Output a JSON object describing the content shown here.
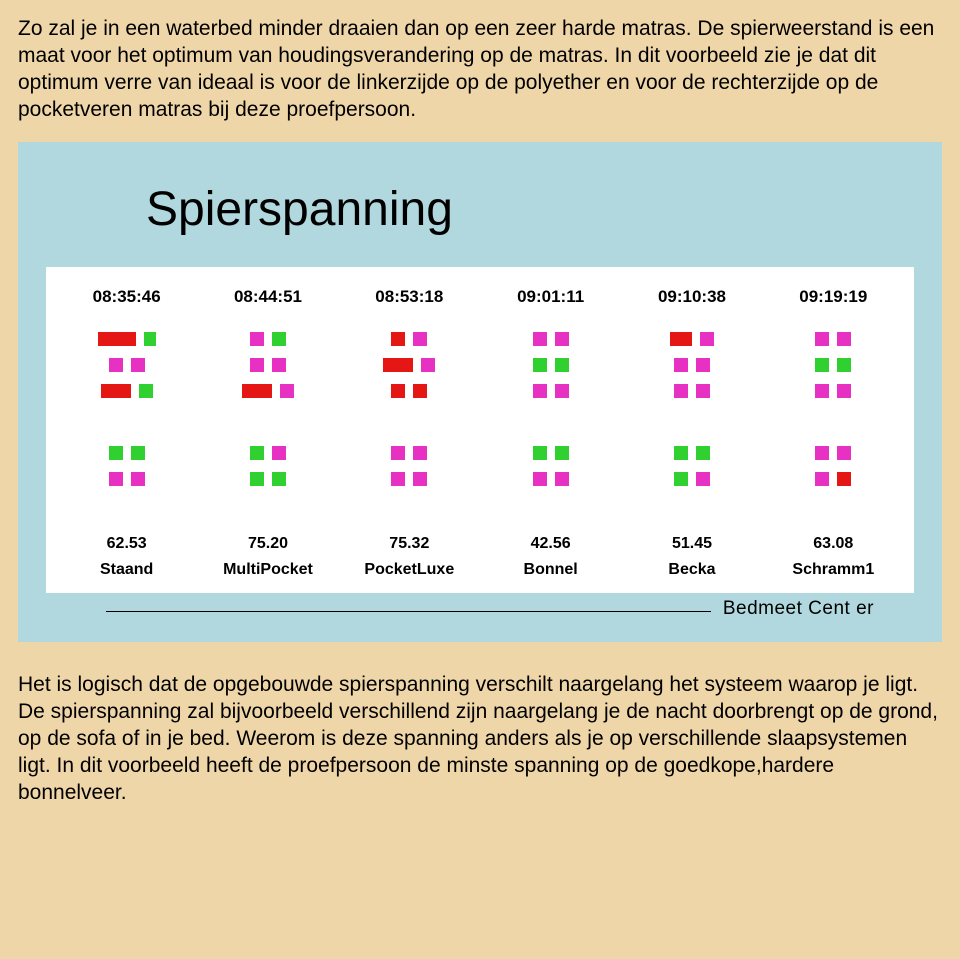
{
  "para1": "Zo zal je in een waterbed minder draaien dan op een zeer harde matras.\nDe spierweerstand is een maat voor het optimum van houdingsverandering op de matras.\nIn dit voorbeeld zie je dat dit optimum verre van ideaal is voor de linkerzijde op de polyether en voor de rechterzijde op de pocketveren matras bij deze proefpersoon.",
  "para2": "Het is logisch dat de opgebouwde spierspanning verschilt naargelang het systeem waarop je ligt. De spierspanning zal bijvoorbeeld verschillend zijn naargelang je de nacht doorbrengt op de grond, op de sofa of in je bed. Weerom is deze spanning anders als je op verschillende slaapsystemen ligt.\nIn dit voorbeeld heeft de proefpersoon de minste spanning op de goedkope,hardere bonnelveer.",
  "chart": {
    "title": "Spierspanning",
    "footer": "Bedmeet  Cent er",
    "bg_outer": "#b0d8de",
    "bg_inner": "#ffffff",
    "text_color": "#000000",
    "colors": {
      "red": "#e41714",
      "magenta": "#e631c2",
      "green": "#2fd02f"
    },
    "times": [
      "08:35:46",
      "08:44:51",
      "08:53:18",
      "09:01:11",
      "09:10:38",
      "09:19:19"
    ],
    "values": [
      "62.53",
      "75.20",
      "75.32",
      "42.56",
      "51.45",
      "63.08"
    ],
    "labels": [
      "Staand",
      "MultiPocket",
      "PocketLuxe",
      "Bonnel",
      "Becka",
      "Schramm1"
    ],
    "rows": [
      [
        {
          "c": "red",
          "w": 38
        },
        {
          "c": "green",
          "w": 12
        },
        {
          "c": "magenta",
          "w": 14
        },
        {
          "c": "green",
          "w": 14
        },
        {
          "c": "red",
          "w": 14
        },
        {
          "c": "magenta",
          "w": 14
        },
        {
          "c": "magenta",
          "w": 14
        },
        {
          "c": "magenta",
          "w": 14
        },
        {
          "c": "red",
          "w": 22
        },
        {
          "c": "magenta",
          "w": 14
        },
        {
          "c": "magenta",
          "w": 14
        },
        {
          "c": "magenta",
          "w": 14
        }
      ],
      [
        {
          "c": "magenta",
          "w": 14
        },
        {
          "c": "magenta",
          "w": 14
        },
        {
          "c": "magenta",
          "w": 14
        },
        {
          "c": "magenta",
          "w": 14
        },
        {
          "c": "red",
          "w": 30
        },
        {
          "c": "magenta",
          "w": 14
        },
        {
          "c": "green",
          "w": 14
        },
        {
          "c": "green",
          "w": 14
        },
        {
          "c": "magenta",
          "w": 14
        },
        {
          "c": "magenta",
          "w": 14
        },
        {
          "c": "green",
          "w": 14
        },
        {
          "c": "green",
          "w": 14
        }
      ],
      [
        {
          "c": "red",
          "w": 30
        },
        {
          "c": "green",
          "w": 14
        },
        {
          "c": "red",
          "w": 30
        },
        {
          "c": "magenta",
          "w": 14
        },
        {
          "c": "red",
          "w": 14
        },
        {
          "c": "red",
          "w": 14
        },
        {
          "c": "magenta",
          "w": 14
        },
        {
          "c": "magenta",
          "w": 14
        },
        {
          "c": "magenta",
          "w": 14
        },
        {
          "c": "magenta",
          "w": 14
        },
        {
          "c": "magenta",
          "w": 14
        },
        {
          "c": "magenta",
          "w": 14
        }
      ],
      [
        {
          "c": "green",
          "w": 14
        },
        {
          "c": "green",
          "w": 14
        },
        {
          "c": "green",
          "w": 14
        },
        {
          "c": "magenta",
          "w": 14
        },
        {
          "c": "magenta",
          "w": 14
        },
        {
          "c": "magenta",
          "w": 14
        },
        {
          "c": "green",
          "w": 14
        },
        {
          "c": "green",
          "w": 14
        },
        {
          "c": "green",
          "w": 14
        },
        {
          "c": "green",
          "w": 14
        },
        {
          "c": "magenta",
          "w": 14
        },
        {
          "c": "magenta",
          "w": 14
        }
      ],
      [
        {
          "c": "magenta",
          "w": 14
        },
        {
          "c": "magenta",
          "w": 14
        },
        {
          "c": "green",
          "w": 14
        },
        {
          "c": "green",
          "w": 14
        },
        {
          "c": "magenta",
          "w": 14
        },
        {
          "c": "magenta",
          "w": 14
        },
        {
          "c": "magenta",
          "w": 14
        },
        {
          "c": "magenta",
          "w": 14
        },
        {
          "c": "green",
          "w": 14
        },
        {
          "c": "magenta",
          "w": 14
        },
        {
          "c": "magenta",
          "w": 14
        },
        {
          "c": "red",
          "w": 14
        }
      ]
    ]
  }
}
